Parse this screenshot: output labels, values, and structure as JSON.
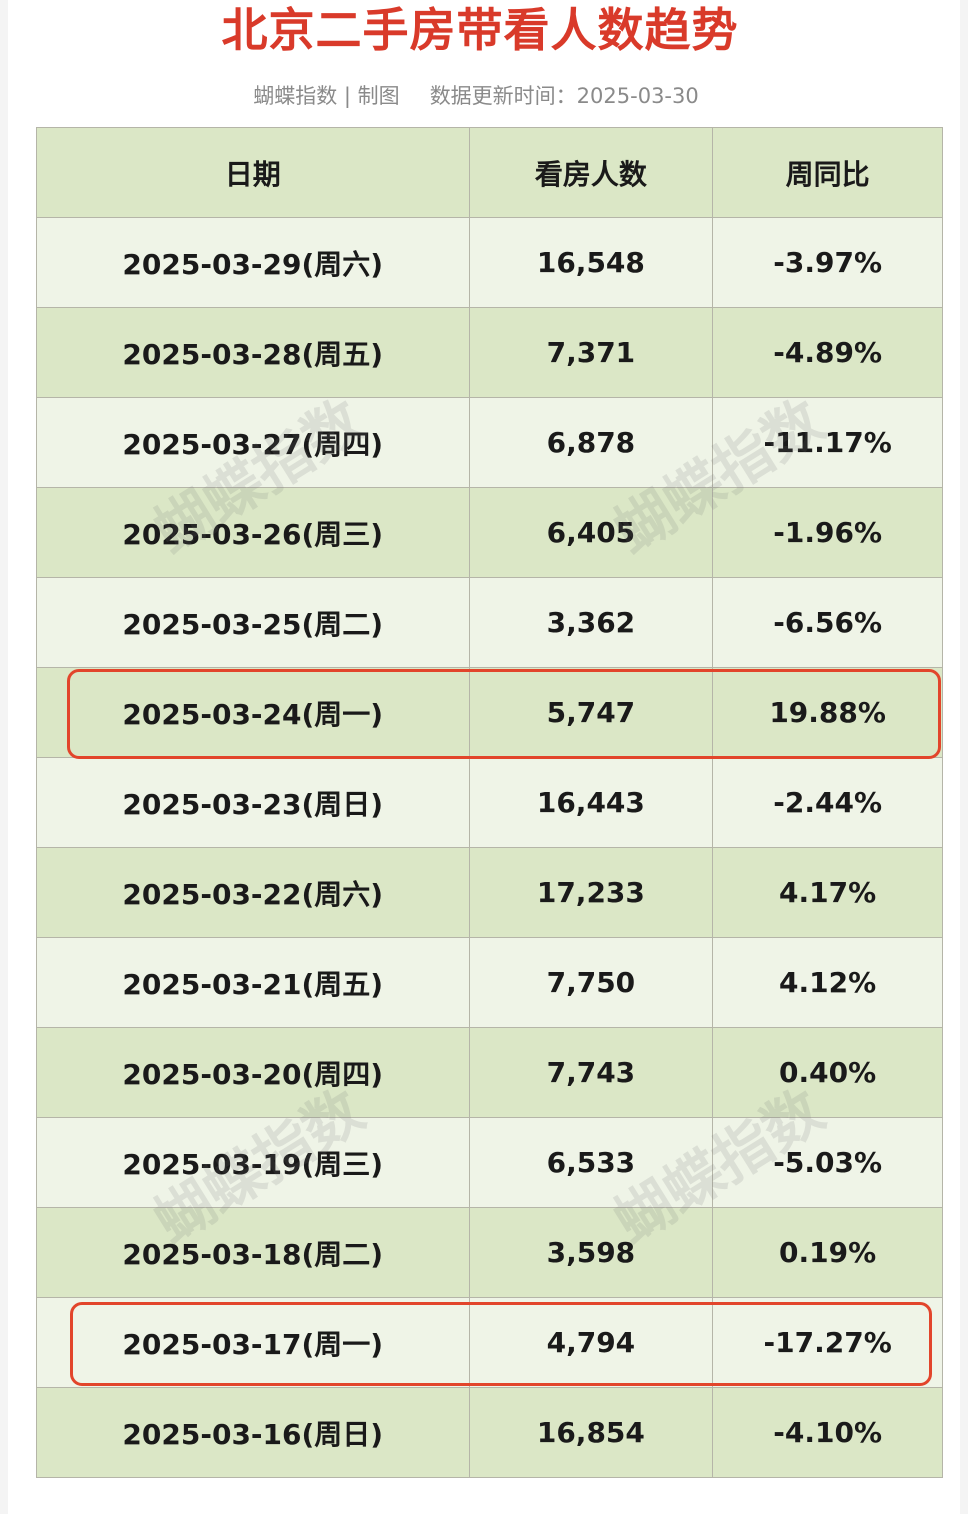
{
  "title": "北京二手房带看人数趋势",
  "subtitle": {
    "source": "蝴蝶指数 | 制图",
    "update": "数据更新时间：2025-03-30"
  },
  "watermark": "蝴蝶指数",
  "table": {
    "headers": [
      "日期",
      "看房人数",
      "周同比"
    ],
    "rows": [
      {
        "date": "2025-03-29(周六)",
        "count": "16,548",
        "yoy": "-3.97%"
      },
      {
        "date": "2025-03-28(周五)",
        "count": "7,371",
        "yoy": "-4.89%"
      },
      {
        "date": "2025-03-27(周四)",
        "count": "6,878",
        "yoy": "-11.17%"
      },
      {
        "date": "2025-03-26(周三)",
        "count": "6,405",
        "yoy": "-1.96%"
      },
      {
        "date": "2025-03-25(周二)",
        "count": "3,362",
        "yoy": "-6.56%"
      },
      {
        "date": "2025-03-24(周一)",
        "count": "5,747",
        "yoy": "19.88%"
      },
      {
        "date": "2025-03-23(周日)",
        "count": "16,443",
        "yoy": "-2.44%"
      },
      {
        "date": "2025-03-22(周六)",
        "count": "17,233",
        "yoy": "4.17%"
      },
      {
        "date": "2025-03-21(周五)",
        "count": "7,750",
        "yoy": "4.12%"
      },
      {
        "date": "2025-03-20(周四)",
        "count": "7,743",
        "yoy": "0.40%"
      },
      {
        "date": "2025-03-19(周三)",
        "count": "6,533",
        "yoy": "-5.03%"
      },
      {
        "date": "2025-03-18(周二)",
        "count": "3,598",
        "yoy": "0.19%"
      },
      {
        "date": "2025-03-17(周一)",
        "count": "4,794",
        "yoy": "-17.27%"
      },
      {
        "date": "2025-03-16(周日)",
        "count": "16,854",
        "yoy": "-4.10%"
      }
    ]
  },
  "colors": {
    "title": "#d93a2a",
    "header_bg": "#dbe7c6",
    "row_dark": "#dbe7c6",
    "row_light": "#eff4e7",
    "highlight_border": "#e2452b"
  }
}
